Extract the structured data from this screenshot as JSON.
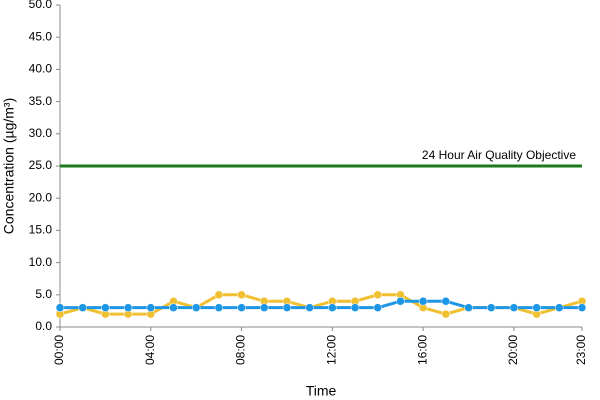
{
  "chart_data": {
    "type": "line",
    "y_label": "Concentration (µg/m³)",
    "x_label": "Time",
    "categories": [
      "00:00",
      null,
      null,
      null,
      "04:00",
      null,
      null,
      null,
      "08:00",
      null,
      null,
      null,
      "12:00",
      null,
      null,
      null,
      "16:00",
      null,
      null,
      null,
      "20:00",
      null,
      null,
      "23:00"
    ],
    "series": [
      {
        "color": "#f0c030",
        "values": [
          2,
          3,
          2,
          2,
          2,
          4,
          3,
          5,
          5,
          4,
          4,
          3,
          4,
          4,
          5,
          5,
          3,
          2,
          3,
          3,
          3,
          2,
          3,
          4
        ],
        "markers": true
      },
      {
        "color": "#1e96e6",
        "values": [
          3,
          3,
          3,
          3,
          3,
          3,
          3,
          3,
          3,
          3,
          3,
          3,
          3,
          3,
          3,
          4,
          4,
          4,
          3,
          3,
          3,
          3,
          3,
          3
        ],
        "markers": true
      },
      {
        "name": "24 Hour Air Quality Objective",
        "color": "#1a7a1a",
        "values": [
          25,
          25,
          25,
          25,
          25,
          25,
          25,
          25,
          25,
          25,
          25,
          25,
          25,
          25,
          25,
          25,
          25,
          25,
          25,
          25,
          25,
          25,
          25,
          25
        ],
        "markers": false
      }
    ],
    "ylim": [
      0,
      50
    ],
    "yticks": [
      {
        "value": 0,
        "label": "0.0"
      },
      {
        "value": 5,
        "label": "5.0"
      },
      {
        "value": 10,
        "label": "10.0"
      },
      {
        "value": 15,
        "label": "15.0"
      },
      {
        "value": 20,
        "label": "20.0"
      },
      {
        "value": 25,
        "label": "25.0"
      },
      {
        "value": 30,
        "label": "30.0"
      },
      {
        "value": 35,
        "label": "35.0"
      },
      {
        "value": 40,
        "label": "40.0"
      },
      {
        "value": 45,
        "label": "45.0"
      },
      {
        "value": 50,
        "label": "50.0"
      }
    ],
    "grid": false
  }
}
